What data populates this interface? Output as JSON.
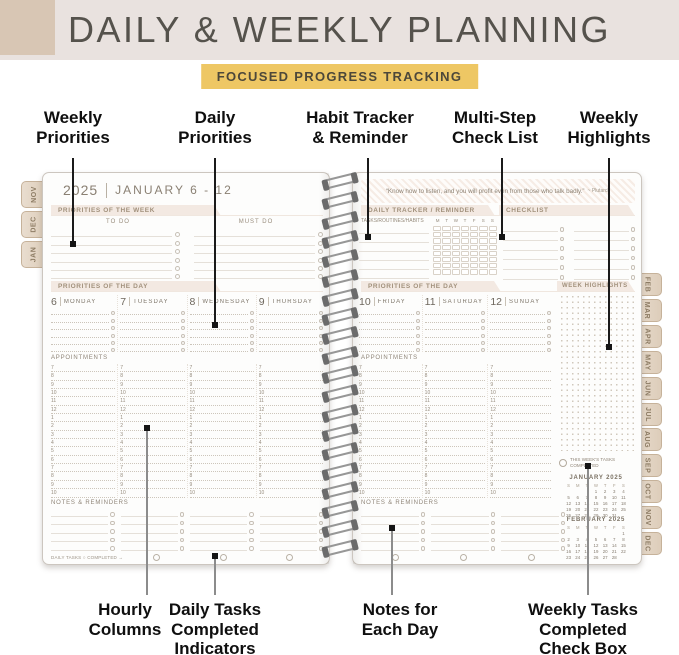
{
  "header": {
    "title": "DAILY & WEEKLY PLANNING",
    "badge": "FOCUSED PROGRESS TRACKING"
  },
  "callouts": {
    "top": [
      {
        "label": "Weekly\nPriorities"
      },
      {
        "label": "Daily\nPriorities"
      },
      {
        "label": "Habit Tracker\n& Reminder"
      },
      {
        "label": "Multi-Step\nCheck List"
      },
      {
        "label": "Weekly\nHighlights"
      }
    ],
    "bottom": [
      {
        "label": "Hourly\nColumns"
      },
      {
        "label": "Daily Tasks\nCompleted\nIndicators"
      },
      {
        "label": "Notes for\nEach Day"
      },
      {
        "label": "Weekly Tasks\nCompleted\nCheck Box"
      }
    ]
  },
  "left_page": {
    "year": "2025",
    "week_range": "JANUARY 6 - 12",
    "priorities_week_label": "PRIORITIES OF THE WEEK",
    "todo_col_label": "TO DO",
    "mustdo_col_label": "MUST DO",
    "priorities_day_label": "PRIORITIES OF THE DAY",
    "days": [
      {
        "num": "6",
        "name": "MONDAY"
      },
      {
        "num": "7",
        "name": "TUESDAY"
      },
      {
        "num": "8",
        "name": "WEDNESDAY"
      },
      {
        "num": "9",
        "name": "THURSDAY"
      }
    ],
    "appointments_label": "APPOINTMENTS",
    "hours": [
      "7",
      "8",
      "9",
      "10",
      "11",
      "12",
      "1",
      "2",
      "3",
      "4",
      "5",
      "6",
      "7",
      "8",
      "9",
      "10"
    ],
    "notes_label": "NOTES & REMINDERS",
    "daily_tasks_note": "DAILY TASKS ○ COMPLETED →"
  },
  "right_page": {
    "quote": "“Know how to listen, and you will profit even from those who talk badly.”",
    "quote_attribution": "~ Plutarch",
    "tracker_label": "DAILY TRACKER / REMINDER",
    "tracker_sublabel": "TASKS/ROUTINES/HABITS",
    "tracker_day_letters": [
      "M",
      "T",
      "W",
      "T",
      "F",
      "S",
      "S"
    ],
    "checklist_label": "CHECKLIST",
    "priorities_day_label": "PRIORITIES OF THE DAY",
    "week_highlights_label": "WEEK HIGHLIGHTS",
    "days": [
      {
        "num": "10",
        "name": "FRIDAY"
      },
      {
        "num": "11",
        "name": "SATURDAY"
      },
      {
        "num": "12",
        "name": "SUNDAY"
      }
    ],
    "appointments_label": "APPOINTMENTS",
    "notes_label": "NOTES & REMINDERS",
    "weekly_tasks_label": "THIS WEEK'S TASKS COMPLETED",
    "mini_calendars": [
      {
        "title": "JANUARY",
        "year": "2025",
        "weekdays": [
          "S",
          "M",
          "T",
          "W",
          "T",
          "F",
          "S"
        ],
        "weeks": [
          [
            "",
            "",
            "",
            "1",
            "2",
            "3",
            "4"
          ],
          [
            "5",
            "6",
            "7",
            "8",
            "9",
            "10",
            "11"
          ],
          [
            "12",
            "13",
            "14",
            "15",
            "16",
            "17",
            "18"
          ],
          [
            "19",
            "20",
            "21",
            "22",
            "23",
            "24",
            "25"
          ],
          [
            "26",
            "27",
            "28",
            "29",
            "30",
            "31",
            ""
          ]
        ]
      },
      {
        "title": "FEBRUARY",
        "year": "2025",
        "weekdays": [
          "S",
          "M",
          "T",
          "W",
          "T",
          "F",
          "S"
        ],
        "weeks": [
          [
            "",
            "",
            "",
            "",
            "",
            "",
            "1"
          ],
          [
            "2",
            "3",
            "4",
            "5",
            "6",
            "7",
            "8"
          ],
          [
            "9",
            "10",
            "11",
            "12",
            "13",
            "14",
            "15"
          ],
          [
            "16",
            "17",
            "18",
            "19",
            "20",
            "21",
            "22"
          ],
          [
            "23",
            "24",
            "25",
            "26",
            "27",
            "28",
            ""
          ]
        ]
      }
    ]
  },
  "tabs": {
    "left": [
      "NOV",
      "DEC",
      "JAN"
    ],
    "right": [
      "FEB",
      "MAR",
      "APR",
      "MAY",
      "JUN",
      "JUL",
      "AUG",
      "SEP",
      "OCT",
      "NOV",
      "DEC"
    ]
  },
  "colors": {
    "hero_bg": "#e9e2df",
    "badge_bg": "#eec764",
    "corner_square": "#d8c6b4",
    "band_bg": "#f3e9e2",
    "tab_bg": "#e3d4c3",
    "page_text": "#8d8276"
  }
}
